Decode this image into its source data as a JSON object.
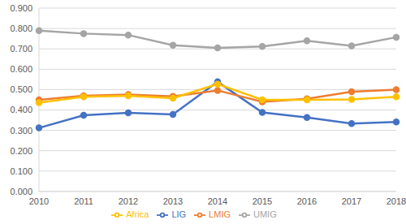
{
  "chart_data": {
    "type": "line",
    "categories": [
      "2010",
      "2011",
      "2012",
      "2013",
      "2014",
      "2015",
      "2016",
      "2017",
      "2018"
    ],
    "series": [
      {
        "name": "LIG",
        "color": "#4472c4",
        "values": [
          0.312,
          0.374,
          0.386,
          0.378,
          0.538,
          0.388,
          0.363,
          0.333,
          0.341
        ]
      },
      {
        "name": "LMIG",
        "color": "#ed7d31",
        "values": [
          0.45,
          0.47,
          0.476,
          0.467,
          0.496,
          0.44,
          0.455,
          0.49,
          0.5
        ]
      },
      {
        "name": "UMIG",
        "color": "#a5a5a5",
        "values": [
          0.789,
          0.775,
          0.768,
          0.718,
          0.705,
          0.712,
          0.74,
          0.715,
          0.757
        ]
      },
      {
        "name": "Africa",
        "color": "#ffc000",
        "values": [
          0.436,
          0.465,
          0.47,
          0.458,
          0.527,
          0.45,
          0.45,
          0.452,
          0.465
        ]
      }
    ],
    "ylim": [
      0,
      0.9
    ],
    "yticks": [
      {
        "value": 0,
        "label": "0.000"
      },
      {
        "value": 0.1,
        "label": "0.100"
      },
      {
        "value": 0.2,
        "label": "0.200"
      },
      {
        "value": 0.3,
        "label": "0.300"
      },
      {
        "value": 0.4,
        "label": "0.400"
      },
      {
        "value": 0.5,
        "label": "0.500"
      },
      {
        "value": 0.6,
        "label": "0.600"
      },
      {
        "value": 0.7,
        "label": "0.700"
      },
      {
        "value": 0.8,
        "label": "0.800"
      },
      {
        "value": 0.9,
        "label": "0.900"
      }
    ],
    "grid": true,
    "legend": "bottom",
    "marker": "circle"
  }
}
